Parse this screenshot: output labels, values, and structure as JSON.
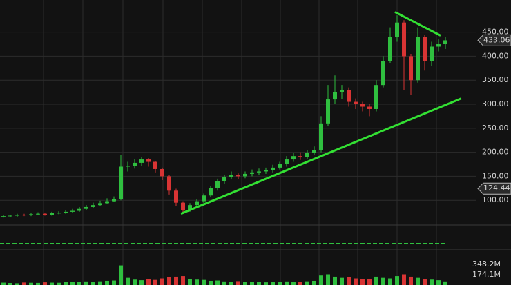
{
  "chart_data": {
    "type": "candlestick",
    "open": [
      66,
      67,
      68,
      70,
      69,
      71,
      72,
      70,
      73,
      74,
      76,
      78,
      82,
      86,
      90,
      94,
      98,
      102,
      170,
      172,
      178,
      185,
      180,
      165,
      150,
      120,
      95,
      80,
      90,
      98,
      110,
      125,
      140,
      148,
      152,
      150,
      155,
      158,
      160,
      163,
      168,
      175,
      185,
      192,
      190,
      198,
      205,
      260,
      310,
      325,
      330,
      305,
      300,
      295,
      290,
      340,
      390,
      440,
      470,
      400,
      350,
      440,
      390,
      420,
      425
    ],
    "high": [
      69,
      70,
      72,
      72,
      73,
      75,
      74,
      76,
      77,
      79,
      82,
      86,
      90,
      95,
      99,
      104,
      108,
      195,
      180,
      186,
      190,
      188,
      182,
      168,
      152,
      124,
      98,
      94,
      102,
      114,
      130,
      145,
      152,
      160,
      156,
      160,
      164,
      166,
      168,
      174,
      180,
      192,
      198,
      200,
      204,
      212,
      275,
      340,
      360,
      340,
      335,
      312,
      305,
      300,
      350,
      400,
      460,
      485,
      475,
      405,
      460,
      445,
      430,
      435,
      440
    ],
    "low": [
      64,
      65,
      66,
      67,
      67,
      69,
      68,
      68,
      71,
      72,
      74,
      76,
      80,
      84,
      88,
      92,
      96,
      100,
      160,
      166,
      172,
      170,
      158,
      142,
      112,
      88,
      72,
      76,
      86,
      94,
      106,
      120,
      135,
      144,
      144,
      146,
      150,
      152,
      155,
      158,
      164,
      170,
      180,
      184,
      186,
      194,
      200,
      255,
      300,
      310,
      295,
      290,
      285,
      275,
      285,
      335,
      385,
      430,
      330,
      320,
      345,
      370,
      380,
      410,
      415
    ],
    "close": [
      67,
      68,
      70,
      69,
      71,
      72,
      70,
      73,
      74,
      76,
      78,
      82,
      86,
      90,
      94,
      98,
      102,
      170,
      172,
      178,
      185,
      180,
      165,
      150,
      120,
      95,
      80,
      90,
      98,
      110,
      125,
      140,
      148,
      152,
      150,
      155,
      158,
      160,
      163,
      168,
      175,
      185,
      192,
      190,
      198,
      205,
      260,
      310,
      325,
      330,
      305,
      300,
      295,
      290,
      340,
      390,
      440,
      470,
      400,
      350,
      440,
      390,
      420,
      425,
      433
    ],
    "up_color": "#2fbf3f",
    "down_color": "#d83434",
    "ylim": [
      50,
      517
    ],
    "yticks": [
      {
        "value": 100,
        "label": "100.00"
      },
      {
        "value": 150,
        "label": "150.00"
      },
      {
        "value": 200,
        "label": "200.00"
      },
      {
        "value": 250,
        "label": "250.00"
      },
      {
        "value": 300,
        "label": "300.00"
      },
      {
        "value": 350,
        "label": "350.00"
      },
      {
        "value": 400,
        "label": "400.00"
      },
      {
        "value": 450,
        "label": "450.00"
      }
    ],
    "price_labels": [
      {
        "value": 433.06,
        "label": "433.06"
      },
      {
        "value": 124.44,
        "label": "124.44"
      }
    ],
    "trendlines": [
      {
        "x": [
          25.7,
          66.3
        ],
        "y": [
          72,
          312
        ],
        "color": "#33e033"
      },
      {
        "x": [
          56.7,
          63.3
        ],
        "y": [
          492,
          443
        ],
        "color": "#33e033"
      }
    ],
    "volume": [
      40,
      35,
      30,
      42,
      38,
      36,
      45,
      40,
      38,
      50,
      55,
      48,
      60,
      58,
      62,
      70,
      75,
      330,
      120,
      90,
      80,
      95,
      85,
      110,
      130,
      140,
      150,
      100,
      90,
      85,
      70,
      75,
      60,
      55,
      65,
      50,
      48,
      52,
      45,
      50,
      55,
      60,
      58,
      50,
      62,
      70,
      160,
      180,
      140,
      120,
      130,
      110,
      95,
      100,
      140,
      120,
      110,
      150,
      180,
      140,
      120,
      100,
      90,
      80,
      60
    ],
    "volume_ylim": [
      0,
      673
    ],
    "volume_ticks": [
      {
        "value": 348.2,
        "label": "348.2M"
      },
      {
        "value": 174.1,
        "label": "174.1M"
      }
    ]
  }
}
